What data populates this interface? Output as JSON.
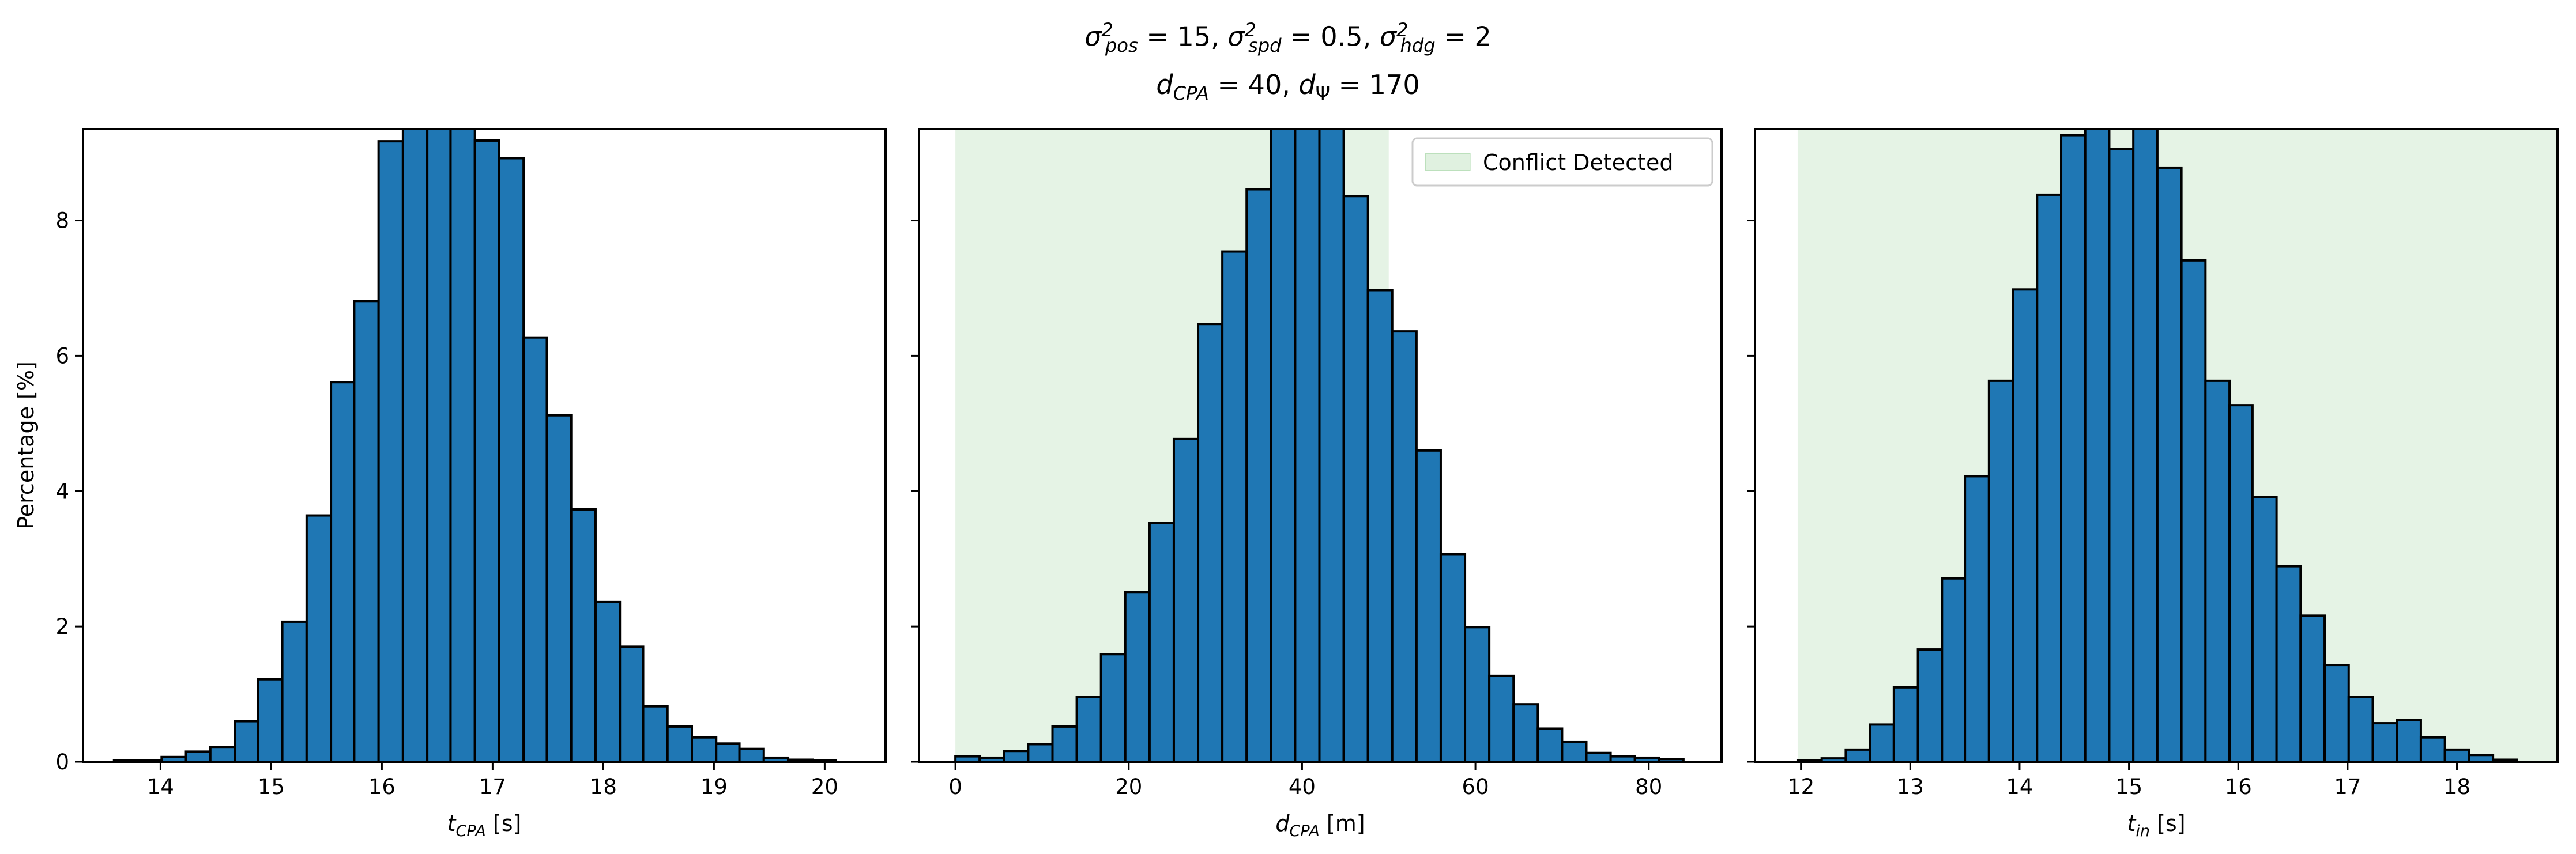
{
  "figure": {
    "title_line1": {
      "s1": "σ",
      "p1": "2",
      "b1": "pos",
      "t1": " = 15, ",
      "s2": "σ",
      "p2": "2",
      "b2": "spd",
      "t2": " = 0.5, ",
      "s3": "σ",
      "p3": "2",
      "b3": "hdg",
      "t3": " = 2"
    },
    "title_line2": {
      "d1": "d",
      "b1": "CPA",
      "t1": " = 40, ",
      "d2": "d",
      "b2": "Ψ",
      "t2": " = 170"
    }
  },
  "chart_data": [
    {
      "type": "bar",
      "subtype": "histogram",
      "xlabel": {
        "main": "t",
        "sub": "CPA",
        "unit": " [s]"
      },
      "ylabel": "Percentage [%]",
      "xlim": [
        13.3,
        20.55
      ],
      "ylim": [
        0,
        9.35
      ],
      "xticks": [
        14,
        15,
        16,
        17,
        18,
        19,
        20
      ],
      "yticks": [
        0,
        2,
        4,
        6,
        8
      ],
      "bar_color": "#1f77b4",
      "bin_edges": [
        13.58,
        13.8,
        14.01,
        14.23,
        14.45,
        14.67,
        14.88,
        15.1,
        15.32,
        15.54,
        15.75,
        15.97,
        16.19,
        16.41,
        16.62,
        16.84,
        17.06,
        17.28,
        17.49,
        17.71,
        17.93,
        18.15,
        18.36,
        18.58,
        18.8,
        19.02,
        19.23,
        19.45,
        19.67,
        19.89,
        20.1
      ],
      "values": [
        0.02,
        0.02,
        0.07,
        0.15,
        0.22,
        0.6,
        1.22,
        2.07,
        3.64,
        5.61,
        6.81,
        9.17,
        9.5,
        9.5,
        9.4,
        9.18,
        8.92,
        6.27,
        5.12,
        3.73,
        2.36,
        1.7,
        0.82,
        0.52,
        0.36,
        0.27,
        0.19,
        0.06,
        0.03,
        0.02
      ]
    },
    {
      "type": "bar",
      "subtype": "histogram",
      "xlabel": {
        "main": "d",
        "sub": "CPA",
        "unit": " [m]"
      },
      "ylabel": "",
      "xlim": [
        -4.2,
        88.4
      ],
      "ylim": [
        0,
        9.35
      ],
      "xticks": [
        0,
        20,
        40,
        60,
        80
      ],
      "yticks": [
        0,
        2,
        4,
        6,
        8
      ],
      "bar_color": "#1f77b4",
      "shaded_region": {
        "x": [
          0,
          50
        ],
        "color": "#2ca02c",
        "alpha": 0.12,
        "legend": "Conflict Detected"
      },
      "legend_position": "upper right",
      "bin_edges": [
        0.0,
        2.8,
        5.6,
        8.4,
        11.2,
        14.0,
        16.8,
        19.6,
        22.4,
        25.2,
        28.0,
        30.8,
        33.6,
        36.4,
        39.2,
        42.0,
        44.8,
        47.6,
        50.4,
        53.2,
        56.0,
        58.8,
        61.6,
        64.4,
        67.2,
        70.0,
        72.8,
        75.6,
        78.4,
        81.2,
        84.0
      ],
      "values": [
        0.08,
        0.06,
        0.16,
        0.26,
        0.52,
        0.96,
        1.59,
        2.51,
        3.53,
        4.77,
        6.47,
        7.54,
        8.46,
        9.5,
        9.5,
        9.5,
        8.36,
        6.97,
        6.36,
        4.6,
        3.07,
        1.99,
        1.27,
        0.85,
        0.49,
        0.29,
        0.13,
        0.08,
        0.06,
        0.04
      ]
    },
    {
      "type": "bar",
      "subtype": "histogram",
      "xlabel": {
        "main": "t",
        "sub": "in",
        "unit": " [s]"
      },
      "ylabel": "",
      "xlim": [
        11.58,
        18.92
      ],
      "ylim": [
        0,
        9.35
      ],
      "xticks": [
        12,
        13,
        14,
        15,
        16,
        17,
        18
      ],
      "yticks": [
        0,
        2,
        4,
        6,
        8
      ],
      "bar_color": "#1f77b4",
      "shaded_region": {
        "x": [
          11.97,
          18.92
        ],
        "color": "#2ca02c",
        "alpha": 0.12
      },
      "bin_edges": [
        11.97,
        12.19,
        12.41,
        12.63,
        12.85,
        13.07,
        13.29,
        13.5,
        13.72,
        13.94,
        14.16,
        14.38,
        14.6,
        14.82,
        15.04,
        15.26,
        15.48,
        15.7,
        15.92,
        16.13,
        16.35,
        16.57,
        16.79,
        17.01,
        17.23,
        17.45,
        17.67,
        17.89,
        18.11,
        18.33,
        18.55
      ],
      "values": [
        0.02,
        0.05,
        0.18,
        0.55,
        1.1,
        1.66,
        2.71,
        4.22,
        5.63,
        6.98,
        8.38,
        9.26,
        9.5,
        9.06,
        9.5,
        8.78,
        7.41,
        5.63,
        5.27,
        3.91,
        2.89,
        2.16,
        1.43,
        0.96,
        0.57,
        0.62,
        0.36,
        0.18,
        0.1,
        0.03
      ]
    }
  ]
}
